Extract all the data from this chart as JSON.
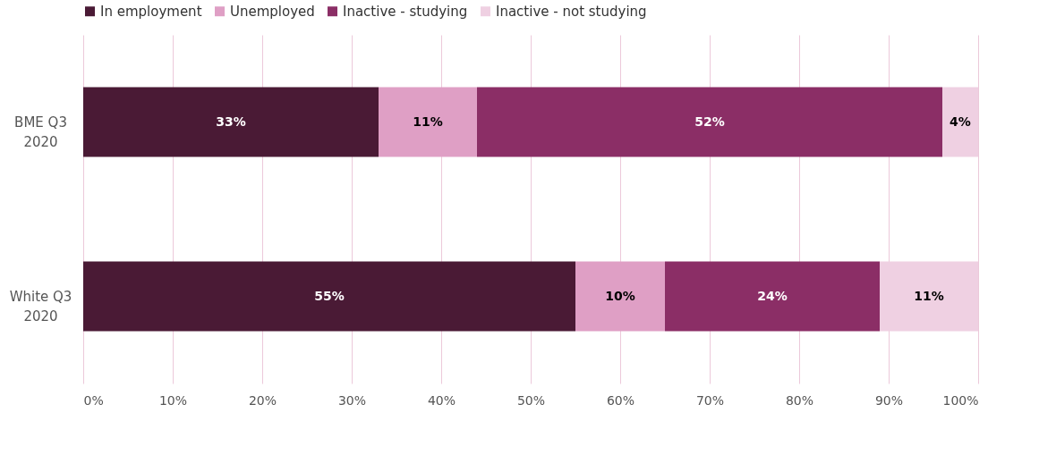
{
  "chart_data": {
    "type": "bar",
    "orientation": "horizontal",
    "stacked": true,
    "categories": [
      "BME Q3 2020",
      "White Q3 2020"
    ],
    "series": [
      {
        "name": "In employment",
        "color": "#4a1a35",
        "values": [
          33,
          55
        ],
        "value_labels": [
          "33%",
          "55%"
        ]
      },
      {
        "name": "Unemployed",
        "color": "#df9fc5",
        "values": [
          11,
          10
        ],
        "value_labels": [
          "11%",
          "10%"
        ]
      },
      {
        "name": "Inactive - studying",
        "color": "#8b2e66",
        "values": [
          52,
          24
        ],
        "value_labels": [
          "52%",
          "24%"
        ]
      },
      {
        "name": "Inactive - not studying",
        "color": "#efd0e2",
        "values": [
          4,
          11
        ],
        "value_labels": [
          "4%",
          "11%"
        ]
      }
    ],
    "xlim": [
      0,
      100
    ],
    "xticks": [
      {
        "value": 0,
        "label": "0%"
      },
      {
        "value": 10,
        "label": "10%"
      },
      {
        "value": 20,
        "label": "20%"
      },
      {
        "value": 30,
        "label": "30%"
      },
      {
        "value": 40,
        "label": "40%"
      },
      {
        "value": 50,
        "label": "50%"
      },
      {
        "value": 60,
        "label": "60%"
      },
      {
        "value": 70,
        "label": "70%"
      },
      {
        "value": 80,
        "label": "80%"
      },
      {
        "value": 90,
        "label": "90%"
      },
      {
        "value": 100,
        "label": "100%"
      }
    ],
    "grid": "x",
    "legend": "top left"
  }
}
